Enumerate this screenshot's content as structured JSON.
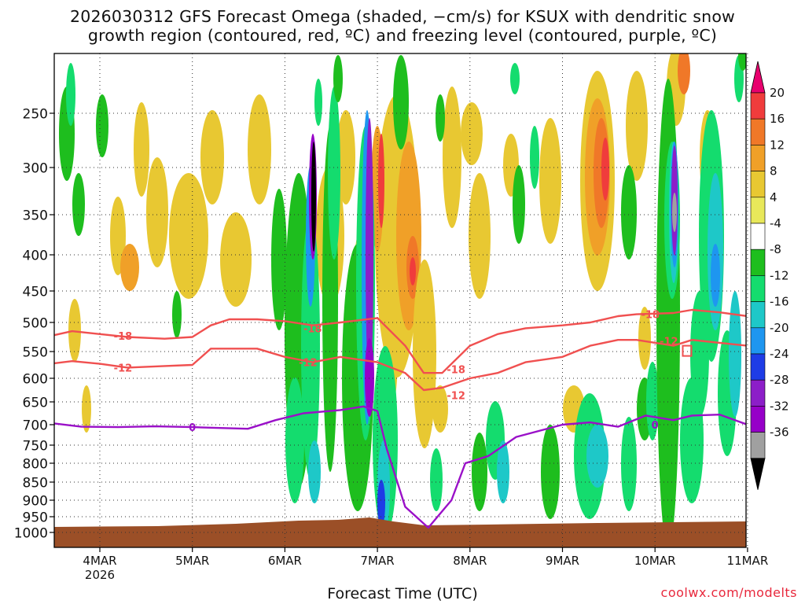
{
  "title_line1": "2026030312 GFS Forecast Omega (shaded, −cm/s) for KSUX with dendritic snow",
  "title_line2": "growth region (contoured, red, ºC) and freezing level (contoured, purple, ºC)",
  "xlabel": "Forecast Time (UTC)",
  "credit": "coolwx.com/modelts",
  "chart_data": {
    "type": "heatmap",
    "title": "GFS Forecast Omega for KSUX",
    "xlabel": "Forecast Time (UTC)",
    "ylabel": "",
    "x_ticks": [
      "4MAR",
      "5MAR",
      "6MAR",
      "7MAR",
      "8MAR",
      "9MAR",
      "10MAR",
      "11MAR"
    ],
    "x_year_label": "2026",
    "y_ticks": [
      250,
      300,
      350,
      400,
      450,
      500,
      550,
      600,
      650,
      700,
      750,
      800,
      850,
      900,
      950,
      1000
    ],
    "x_range_days": [
      3.5,
      11.0
    ],
    "y_range_hpa": [
      200,
      1020
    ],
    "colorbar": {
      "labels": [
        "20",
        "16",
        "12",
        "8",
        "4",
        "-4",
        "-8",
        "-12",
        "-16",
        "-20",
        "-24",
        "-28",
        "-32",
        "-36"
      ],
      "levels": [
        20,
        16,
        12,
        8,
        4,
        -4,
        -8,
        -12,
        -16,
        -20,
        -24,
        -28,
        -32,
        -36
      ],
      "colors": [
        "#e8006e",
        "#f03c3c",
        "#f07828",
        "#f0a028",
        "#e8c832",
        "#e8e85a",
        "#ffffff",
        "#1ebe1e",
        "#14dc6e",
        "#1ec8c8",
        "#1e96f0",
        "#1e3ce6",
        "#8c1ec8",
        "#9600c8",
        "#a0a0a0",
        "#000000"
      ]
    },
    "contours": [
      {
        "name": "-18 C",
        "color": "#f05050",
        "x": [
          3.5,
          3.7,
          4.0,
          4.3,
          4.7,
          5.0,
          5.2,
          5.4,
          5.7,
          6.0,
          6.3,
          6.6,
          7.0,
          7.3,
          7.5,
          7.7,
          8.0,
          8.3,
          8.6,
          9.0,
          9.3,
          9.6,
          9.8,
          10.2,
          10.4,
          10.7,
          11.0
        ],
        "y": [
          522,
          515,
          520,
          525,
          528,
          525,
          505,
          495,
          495,
          498,
          505,
          500,
          493,
          540,
          590,
          590,
          540,
          520,
          510,
          505,
          500,
          490,
          487,
          485,
          480,
          484,
          490
        ]
      },
      {
        "name": "-12 C",
        "color": "#f05050",
        "x": [
          3.5,
          3.7,
          4.0,
          4.3,
          4.7,
          5.0,
          5.2,
          5.4,
          5.7,
          6.0,
          6.3,
          6.6,
          7.0,
          7.3,
          7.5,
          7.7,
          8.0,
          8.3,
          8.6,
          9.0,
          9.3,
          9.6,
          9.8,
          10.2,
          10.4,
          10.7,
          11.0
        ],
        "y": [
          572,
          568,
          573,
          580,
          577,
          575,
          545,
          545,
          545,
          560,
          570,
          560,
          570,
          590,
          625,
          620,
          600,
          590,
          570,
          560,
          540,
          530,
          530,
          540,
          530,
          535,
          540
        ]
      },
      {
        "name": "0 C",
        "color": "#9a10c8",
        "x": [
          3.5,
          3.8,
          4.2,
          4.6,
          5.0,
          5.3,
          5.6,
          5.9,
          6.2,
          6.6,
          6.85,
          7.0,
          7.1,
          7.3,
          7.55,
          7.8,
          7.95,
          8.2,
          8.5,
          9.0,
          9.3,
          9.6,
          9.9,
          10.2,
          10.4,
          10.7,
          11.0
        ],
        "y": [
          697,
          705,
          706,
          704,
          706,
          708,
          710,
          690,
          675,
          668,
          660,
          670,
          760,
          920,
          985,
          900,
          800,
          780,
          730,
          700,
          695,
          705,
          680,
          690,
          680,
          678,
          700
        ]
      }
    ],
    "contour_labels": [
      {
        "text": "-18",
        "x": 4.25,
        "y": 523
      },
      {
        "text": "-12",
        "x": 4.25,
        "y": 580
      },
      {
        "text": "-18",
        "x": 6.3,
        "y": 510
      },
      {
        "text": "-12",
        "x": 6.25,
        "y": 570
      },
      {
        "text": "-18",
        "x": 7.85,
        "y": 583
      },
      {
        "text": "-12",
        "x": 7.85,
        "y": 636
      },
      {
        "text": "-18",
        "x": 9.95,
        "y": 487
      },
      {
        "text": "-12",
        "x": 10.15,
        "y": 532
      },
      {
        "text": "0",
        "x": 5.0,
        "y": 706
      },
      {
        "text": "0",
        "x": 10.0,
        "y": 700
      }
    ],
    "omega_features": [
      {
        "x": 6.3,
        "p_top": 250,
        "p_bot": 420,
        "value": -36,
        "desc": "strongest ascent core"
      },
      {
        "x": 6.9,
        "p_top": 230,
        "p_bot": 880,
        "value": -24,
        "desc": "deep upward motion column"
      },
      {
        "x": 7.35,
        "p_top": 260,
        "p_bot": 480,
        "value": 16,
        "desc": "downward motion core"
      },
      {
        "x": 9.45,
        "p_top": 250,
        "p_bot": 450,
        "value": 16,
        "desc": "downward motion core"
      },
      {
        "x": 10.25,
        "p_top": 240,
        "p_bot": 420,
        "value": -32,
        "desc": "ascent core"
      }
    ]
  }
}
